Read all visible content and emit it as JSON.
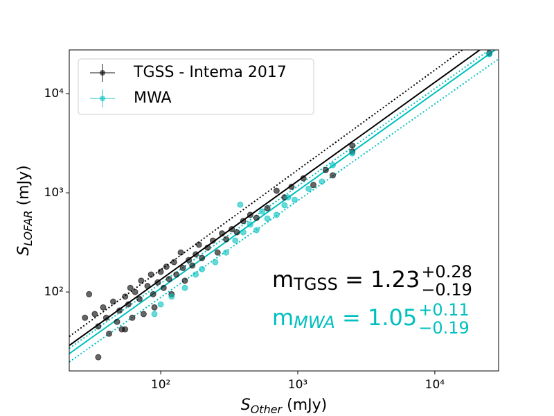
{
  "chart_data": {
    "type": "scatter",
    "xlog": true,
    "ylog": true,
    "xlim": [
      21.5,
      29200
    ],
    "ylim": [
      16,
      27600
    ],
    "xticks": [
      {
        "value": 100,
        "label": "10²"
      },
      {
        "value": 1000,
        "label": "10³"
      },
      {
        "value": 10000,
        "label": "10⁴"
      }
    ],
    "yticks": [
      {
        "value": 100,
        "label": "10²"
      },
      {
        "value": 1000,
        "label": "10³"
      },
      {
        "value": 10000,
        "label": "10⁴"
      }
    ],
    "xlabel": {
      "symbol": "S",
      "subscript": "Other",
      "unit": " (mJy)"
    },
    "ylabel": {
      "symbol": "S",
      "subscript": "LOFAR",
      "unit": " (mJy)"
    },
    "legend": "upper left",
    "series": [
      {
        "name": "TGSS - Intema 2017",
        "color": "#000000",
        "x": [
          30,
          33,
          35,
          38,
          40,
          42,
          45,
          48,
          50,
          52,
          55,
          58,
          60,
          62,
          65,
          70,
          72,
          75,
          80,
          85,
          88,
          90,
          95,
          100,
          105,
          110,
          115,
          120,
          125,
          130,
          140,
          145,
          150,
          160,
          170,
          180,
          190,
          200,
          220,
          240,
          260,
          280,
          300,
          330,
          360,
          400,
          450,
          500,
          600,
          700,
          800,
          900,
          1100,
          1300,
          1600,
          1800,
          2500,
          2500,
          25000,
          35,
          28,
          55
        ],
        "y": [
          95,
          60,
          45,
          70,
          55,
          38,
          80,
          50,
          65,
          42,
          90,
          75,
          110,
          55,
          100,
          85,
          130,
          60,
          115,
          150,
          95,
          70,
          125,
          160,
          110,
          180,
          135,
          95,
          200,
          150,
          250,
          175,
          130,
          210,
          185,
          240,
          300,
          220,
          280,
          330,
          250,
          390,
          340,
          430,
          400,
          520,
          600,
          560,
          700,
          1050,
          900,
          1150,
          1400,
          1200,
          1700,
          1500,
          3000,
          2600,
          25500,
          22,
          55,
          42
        ]
      },
      {
        "name": "MWA",
        "color": "#00bfbf",
        "x": [
          90,
          100,
          120,
          150,
          180,
          200,
          250,
          300,
          350,
          380,
          400,
          450,
          500,
          550,
          600,
          700,
          800,
          850,
          950,
          1200,
          1500,
          1800,
          2500,
          25000
        ],
        "y": [
          60,
          75,
          90,
          110,
          150,
          170,
          200,
          250,
          330,
          760,
          400,
          480,
          420,
          650,
          550,
          600,
          750,
          900,
          850,
          1100,
          1300,
          1900,
          2500,
          25000
        ]
      }
    ],
    "fit_lines": [
      {
        "color": "#000000",
        "style": "solid",
        "x": [
          21.5,
          21300
        ],
        "y": [
          28.9,
          27600
        ]
      },
      {
        "color": "#000000",
        "style": "dotted",
        "x": [
          21.5,
          15900
        ],
        "y": [
          35.6,
          27600
        ]
      },
      {
        "color": "#00bfbf",
        "style": "solid",
        "x": [
          21.5,
          27500
        ],
        "y": [
          23.9,
          27600
        ]
      },
      {
        "color": "#00bfbf",
        "style": "dotted",
        "x": [
          21.5,
          25000
        ],
        "y": [
          27,
          27600
        ]
      },
      {
        "color": "#00bfbf",
        "style": "dotted",
        "x": [
          21.5,
          29200
        ],
        "y": [
          19.7,
          22400
        ]
      }
    ],
    "annotations": [
      {
        "color": "#000000",
        "base": "m",
        "subscript": "TGSS",
        "text": " = 1.23",
        "upper": "+0.28",
        "lower": "−0.19"
      },
      {
        "color": "#00bfbf",
        "base": "m",
        "subscript": "MWA",
        "text": " = 1.05",
        "upper": "+0.11",
        "lower": "−0.19"
      }
    ]
  }
}
